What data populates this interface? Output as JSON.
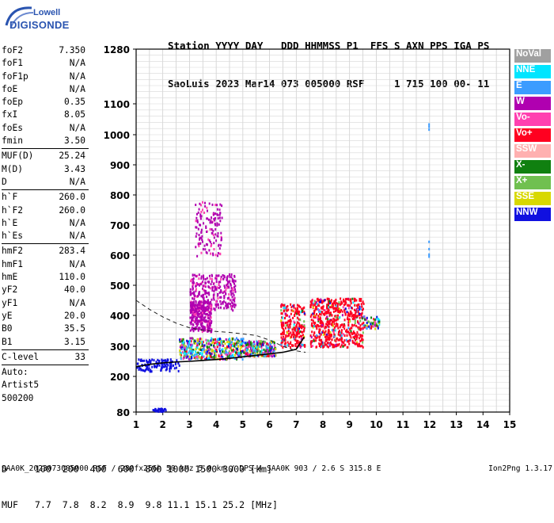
{
  "logo": {
    "top": "Lowell",
    "bottom": "DIGISONDE"
  },
  "header": {
    "row1": "Station YYYY DAY   DDD HHMMSS P1  FFS S AXN PPS IGA PS",
    "row2": "SaoLuis 2023 Mar14 073 005000 RSF     1 715 100 00- 11"
  },
  "params_groups": [
    [
      {
        "name": "foF2",
        "value": "7.350"
      },
      {
        "name": "foF1",
        "value": "N/A"
      },
      {
        "name": "foF1p",
        "value": "N/A"
      },
      {
        "name": "foE",
        "value": "N/A"
      },
      {
        "name": "foEp",
        "value": "0.35"
      },
      {
        "name": "fxI",
        "value": "8.05"
      },
      {
        "name": "foEs",
        "value": "N/A"
      },
      {
        "name": "fmin",
        "value": "3.50"
      }
    ],
    [
      {
        "name": "MUF(D)",
        "value": "25.24"
      },
      {
        "name": "M(D)",
        "value": "3.43"
      },
      {
        "name": "D",
        "value": "N/A"
      }
    ],
    [
      {
        "name": "h`F",
        "value": "260.0"
      },
      {
        "name": "h`F2",
        "value": "260.0"
      },
      {
        "name": "h`E",
        "value": "N/A"
      },
      {
        "name": "h`Es",
        "value": "N/A"
      }
    ],
    [
      {
        "name": "hmF2",
        "value": "283.4"
      },
      {
        "name": "hmF1",
        "value": "N/A"
      },
      {
        "name": "hmE",
        "value": "110.0"
      },
      {
        "name": "yF2",
        "value": "40.0"
      },
      {
        "name": "yF1",
        "value": "N/A"
      },
      {
        "name": "yE",
        "value": "20.0"
      },
      {
        "name": "B0",
        "value": "35.5"
      },
      {
        "name": "B1",
        "value": "3.15"
      }
    ],
    [
      {
        "name": "C-level",
        "value": "33"
      }
    ]
  ],
  "auto": [
    "Auto:",
    "Artist5",
    "500200"
  ],
  "legend": [
    {
      "label": "NoVal",
      "color": "#a0a0a0"
    },
    {
      "label": "NNE",
      "color": "#00e5ff"
    },
    {
      "label": "E",
      "color": "#3c9cff"
    },
    {
      "label": "W",
      "color": "#b000b0"
    },
    {
      "label": "Vo-",
      "color": "#ff40b0"
    },
    {
      "label": "Vo+",
      "color": "#ff0020"
    },
    {
      "label": "SSW",
      "color": "#ffb0b0"
    },
    {
      "label": "X-",
      "color": "#108010"
    },
    {
      "label": "X+",
      "color": "#70c050"
    },
    {
      "label": "SSE",
      "color": "#d8d800"
    },
    {
      "label": "NNW",
      "color": "#1010e0"
    }
  ],
  "bottom": {
    "d_row": "D     100  200  400  600  800 1000 1500 3000 [km]",
    "muf_row": "MUF   7.7  7.8  8.2  8.9  9.8 11.1 15.1 25.2 [MHz]"
  },
  "footer_left": "SAA0K_2023073005000.RSF / 280fx256h 50 kHz 5.0 km / DPS-4 SAA0K 903 / 2.6 S 315.8 E",
  "footer_right": "Ion2Png 1.3.17",
  "chart_data": {
    "type": "scatter",
    "xlim": [
      1,
      15
    ],
    "ylim": [
      80,
      1280
    ],
    "x_ticks": [
      1,
      2,
      3,
      4,
      5,
      6,
      7,
      8,
      9,
      10,
      11,
      12,
      13,
      14,
      15
    ],
    "y_ticks": [
      80,
      200,
      300,
      400,
      500,
      600,
      700,
      800,
      900,
      1000,
      1100,
      1280
    ],
    "trace_x": [
      1.0,
      1.5,
      2.0,
      2.5,
      3.0,
      3.5,
      4.0,
      4.5,
      5.0,
      5.5,
      6.0,
      6.5,
      7.0,
      7.3
    ],
    "trace_y": [
      232,
      240,
      245,
      248,
      250,
      253,
      256,
      260,
      265,
      270,
      275,
      280,
      290,
      330
    ],
    "dashed_x": [
      1.0,
      1.5,
      2.0,
      2.5,
      3.0,
      3.5,
      4.0,
      4.5,
      5.0,
      5.5,
      6.0,
      6.5,
      7.0,
      7.35
    ],
    "dashed_y": [
      450,
      420,
      395,
      375,
      360,
      352,
      348,
      345,
      340,
      335,
      320,
      300,
      285,
      280
    ],
    "clusters": [
      {
        "x": [
          1.6,
          2.1
        ],
        "y": [
          85,
          95
        ],
        "color": "NNW",
        "n": 40
      },
      {
        "x": [
          1.0,
          2.6
        ],
        "y": [
          220,
          260
        ],
        "color": "NNW",
        "n": 120
      },
      {
        "x": [
          2.6,
          5.0
        ],
        "y": [
          260,
          330
        ],
        "color": "mix",
        "n": 500
      },
      {
        "x": [
          3.0,
          3.8
        ],
        "y": [
          350,
          450
        ],
        "color": "W",
        "n": 300
      },
      {
        "x": [
          3.0,
          4.7
        ],
        "y": [
          420,
          540
        ],
        "color": "W",
        "n": 300
      },
      {
        "x": [
          3.2,
          4.2
        ],
        "y": [
          600,
          780
        ],
        "color": "W",
        "n": 140
      },
      {
        "x": [
          5.0,
          6.2
        ],
        "y": [
          270,
          320
        ],
        "color": "mix",
        "n": 250
      },
      {
        "x": [
          6.4,
          7.3
        ],
        "y": [
          300,
          440
        ],
        "color": "Vo+",
        "n": 250
      },
      {
        "x": [
          7.5,
          9.5
        ],
        "y": [
          300,
          460
        ],
        "color": "Vo+",
        "n": 650
      },
      {
        "x": [
          9.5,
          10.1
        ],
        "y": [
          360,
          400
        ],
        "color": "mix",
        "n": 60
      },
      {
        "x": [
          11.95,
          11.95
        ],
        "y": [
          1020,
          1040
        ],
        "color": "E",
        "n": 3
      },
      {
        "x": [
          11.95,
          11.95
        ],
        "y": [
          590,
          650
        ],
        "color": "E",
        "n": 4
      }
    ]
  }
}
